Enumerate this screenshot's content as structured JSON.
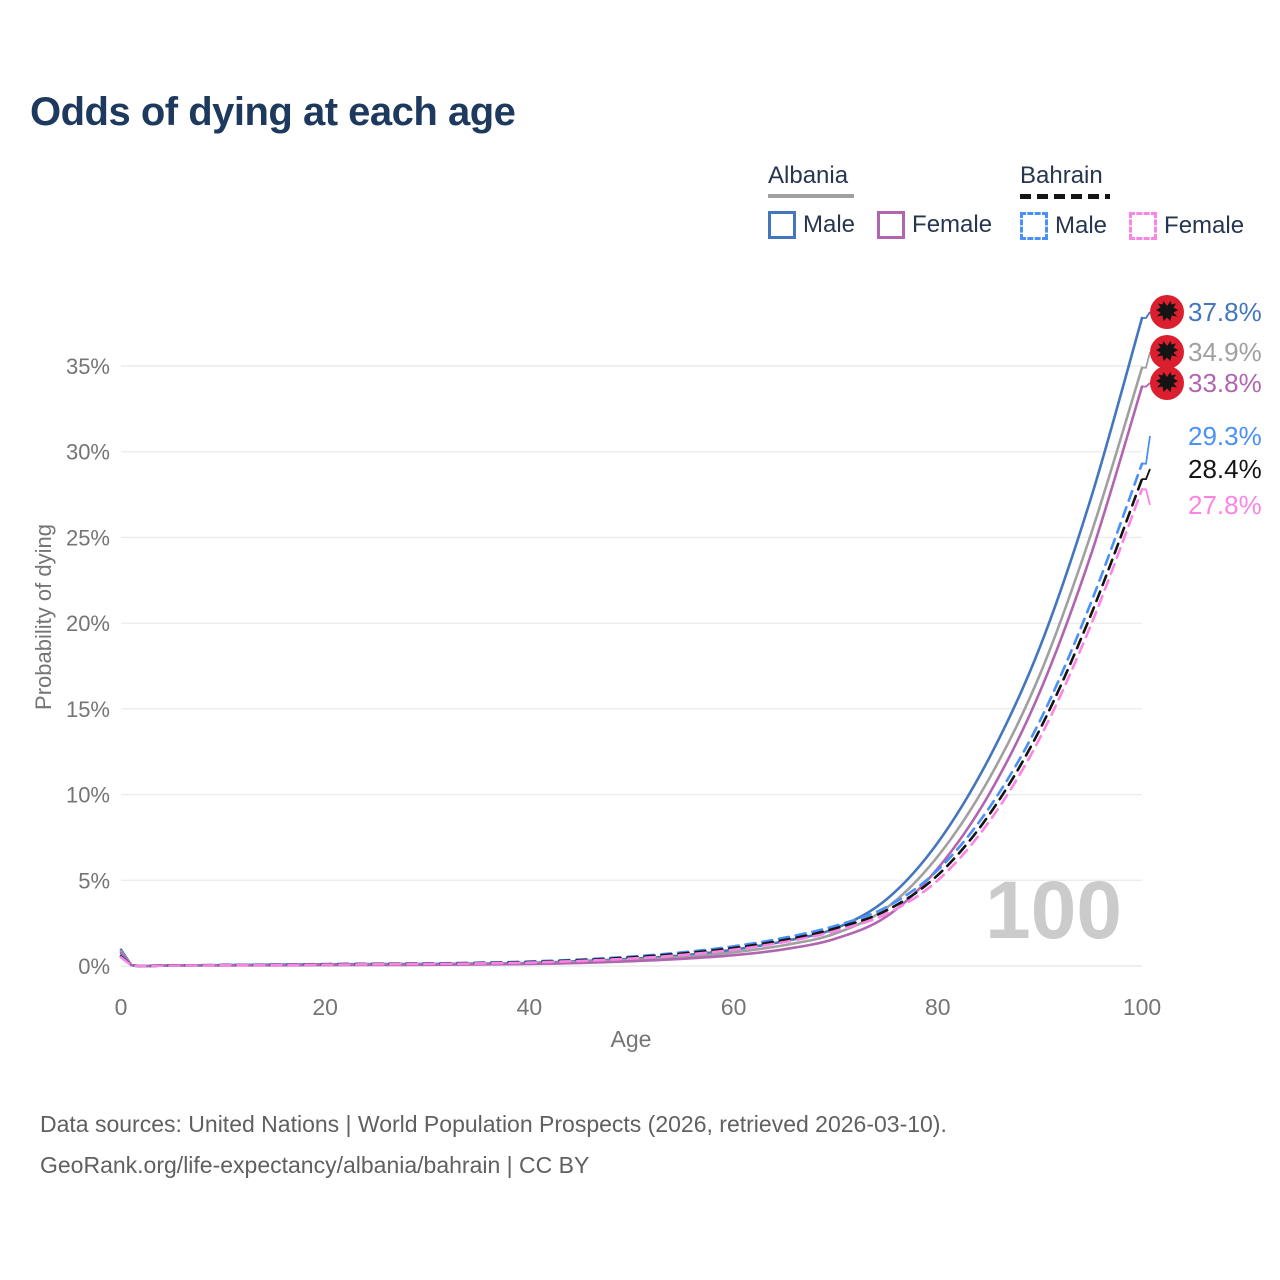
{
  "title": "Odds of dying at each age",
  "legend": {
    "groups": [
      {
        "name": "Albania",
        "line_style": "solid",
        "underline_color": "#a0a0a0",
        "items": [
          {
            "label": "Male",
            "color": "#4376bd"
          },
          {
            "label": "Female",
            "color": "#b165b0"
          }
        ]
      },
      {
        "name": "Bahrain",
        "line_style": "dashed",
        "underline_color": "#141414",
        "items": [
          {
            "label": "Male",
            "color": "#4a90f7"
          },
          {
            "label": "Female",
            "color": "#fb84e4"
          }
        ]
      }
    ]
  },
  "watermark": "100",
  "axes": {
    "x": {
      "label": "Age",
      "ticks": [
        0,
        20,
        40,
        60,
        80,
        100
      ],
      "range": [
        0,
        100
      ]
    },
    "y": {
      "label": "Probability of dying",
      "tick_labels": [
        "0%",
        "5%",
        "10%",
        "15%",
        "20%",
        "25%",
        "30%",
        "35%"
      ],
      "tick_values": [
        0,
        5,
        10,
        15,
        20,
        25,
        30,
        35
      ],
      "range_pct": [
        0,
        35
      ]
    }
  },
  "colors": {
    "albania_flag_red": "#dc1f2e",
    "bahrain_flag_red": "#d41f3c",
    "gridline": "#ececec",
    "tick_text": "#757575",
    "title_navy": "#1d3a5e"
  },
  "chart_data": {
    "type": "line",
    "title": "Odds of dying at each age",
    "xlabel": "Age",
    "ylabel": "Probability of dying",
    "grid": true,
    "legend_position": "top-right",
    "x": [
      0,
      1,
      5,
      10,
      15,
      20,
      25,
      30,
      35,
      40,
      45,
      50,
      55,
      60,
      65,
      70,
      75,
      80,
      85,
      90,
      95,
      100
    ],
    "series": [
      {
        "name": "Albania Male",
        "country": "Albania",
        "sex": "Male",
        "flag": "albania",
        "color": "#4376bd",
        "dash": null,
        "end_label": "37.8%",
        "label_row_y": 312,
        "values_pct": [
          0.95,
          0.06,
          0.04,
          0.05,
          0.08,
          0.1,
          0.11,
          0.12,
          0.14,
          0.18,
          0.28,
          0.42,
          0.62,
          0.95,
          1.45,
          2.2,
          3.9,
          7.2,
          12.1,
          18.6,
          27.3,
          37.8
        ]
      },
      {
        "name": "Albania Both sexes",
        "country": "Albania",
        "sex": "Both",
        "flag": "albania",
        "color": "#a0a0a0",
        "dash": null,
        "end_label": "34.9%",
        "label_row_y": 352,
        "values_pct": [
          0.85,
          0.05,
          0.04,
          0.04,
          0.06,
          0.08,
          0.09,
          0.1,
          0.12,
          0.15,
          0.23,
          0.35,
          0.52,
          0.8,
          1.22,
          1.9,
          3.4,
          6.4,
          10.9,
          17.0,
          25.2,
          34.9
        ]
      },
      {
        "name": "Albania Female",
        "country": "Albania",
        "sex": "Female",
        "flag": "albania",
        "color": "#b165b0",
        "dash": null,
        "end_label": "33.8%",
        "label_row_y": 383,
        "values_pct": [
          0.75,
          0.05,
          0.03,
          0.03,
          0.04,
          0.05,
          0.06,
          0.07,
          0.09,
          0.12,
          0.18,
          0.28,
          0.42,
          0.63,
          0.98,
          1.6,
          2.9,
          5.7,
          10.0,
          16.0,
          24.0,
          33.8
        ]
      },
      {
        "name": "Bahrain Male",
        "country": "Bahrain",
        "sex": "Male",
        "flag": "bahrain",
        "color": "#4a90f7",
        "dash": "10 7",
        "end_label": "29.3%",
        "label_row_y": 436,
        "values_pct": [
          0.6,
          0.05,
          0.04,
          0.05,
          0.08,
          0.11,
          0.13,
          0.15,
          0.19,
          0.26,
          0.38,
          0.55,
          0.8,
          1.15,
          1.65,
          2.35,
          3.45,
          5.6,
          9.2,
          14.3,
          21.2,
          29.3
        ]
      },
      {
        "name": "Bahrain Both sexes",
        "country": "Bahrain",
        "sex": "Both",
        "flag": "bahrain",
        "color": "#141414",
        "dash": "10 7",
        "end_label": "28.4%",
        "label_row_y": 469,
        "values_pct": [
          0.55,
          0.05,
          0.04,
          0.05,
          0.07,
          0.1,
          0.12,
          0.14,
          0.17,
          0.23,
          0.34,
          0.5,
          0.73,
          1.05,
          1.52,
          2.2,
          3.25,
          5.3,
          8.8,
          13.8,
          20.5,
          28.4
        ]
      },
      {
        "name": "Bahrain Female",
        "country": "Bahrain",
        "sex": "Female",
        "flag": "bahrain",
        "color": "#fb84e4",
        "dash": "10 7",
        "end_label": "27.8%",
        "label_row_y": 505,
        "values_pct": [
          0.5,
          0.04,
          0.03,
          0.04,
          0.06,
          0.08,
          0.1,
          0.12,
          0.15,
          0.2,
          0.3,
          0.44,
          0.65,
          0.95,
          1.4,
          2.05,
          3.05,
          5.0,
          8.4,
          13.3,
          19.9,
          27.8
        ]
      }
    ]
  },
  "footer": {
    "line1": "Data sources: United Nations | World Population Prospects (2026, retrieved 2026-03-10).",
    "line2": "GeoRank.org/life-expectancy/albania/bahrain | CC BY"
  }
}
